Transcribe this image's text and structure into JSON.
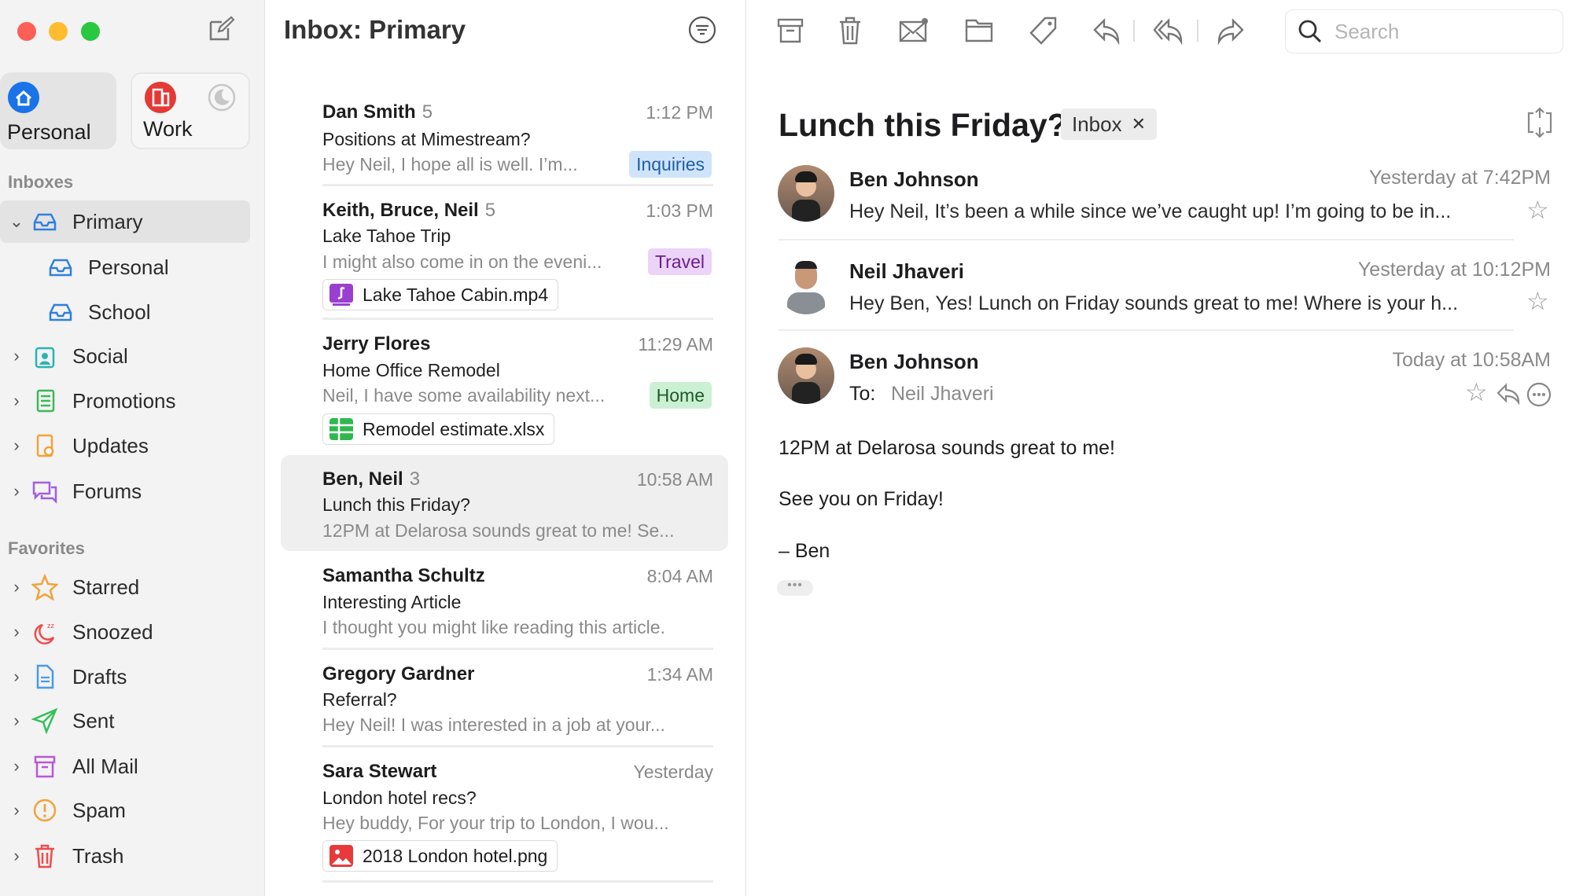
{
  "sidebar": {
    "accounts": [
      {
        "label": "Personal",
        "icon": "house-icon",
        "color": "#1a73e8"
      },
      {
        "label": "Work",
        "icon": "building-icon",
        "color": "#e53935"
      }
    ],
    "inboxes_label": "Inboxes",
    "inboxes": [
      {
        "label": "Primary",
        "icon": "inbox-tray-icon",
        "selected": true,
        "expanded": true
      },
      {
        "label": "Personal",
        "icon": "inbox-tray-icon"
      },
      {
        "label": "School",
        "icon": "inbox-tray-icon"
      },
      {
        "label": "Social",
        "icon": "social-icon"
      },
      {
        "label": "Promotions",
        "icon": "promotions-icon"
      },
      {
        "label": "Updates",
        "icon": "updates-icon"
      },
      {
        "label": "Forums",
        "icon": "forums-icon"
      }
    ],
    "favorites_label": "Favorites",
    "favorites": [
      {
        "label": "Starred",
        "icon": "star-icon"
      },
      {
        "label": "Snoozed",
        "icon": "snooze-icon"
      },
      {
        "label": "Drafts",
        "icon": "draft-icon"
      },
      {
        "label": "Sent",
        "icon": "send-icon"
      },
      {
        "label": "All Mail",
        "icon": "archive-icon"
      },
      {
        "label": "Spam",
        "icon": "spam-icon"
      },
      {
        "label": "Trash",
        "icon": "trash-icon"
      }
    ]
  },
  "list": {
    "title": "Inbox: Primary",
    "emails": [
      {
        "sender": "Dan Smith",
        "count": "5",
        "time": "1:12 PM",
        "subject": "Positions at Mimestream?",
        "preview": "Hey Neil, I hope all is well. I’m...",
        "tag": "Inquiries",
        "tag_bg": "#cfe4fb",
        "tag_fg": "#1f5fa8"
      },
      {
        "sender": "Keith, Bruce, Neil",
        "count": "5",
        "time": "1:03 PM",
        "subject": "Lake Tahoe Trip",
        "preview": "I might also come in on the eveni...",
        "tag": "Travel",
        "tag_bg": "#ecd3f8",
        "tag_fg": "#6a1f8c",
        "attachment": "Lake Tahoe Cabin.mp4"
      },
      {
        "sender": "Jerry Flores",
        "time": "11:29 AM",
        "subject": "Home Office Remodel",
        "preview": "Neil, I have some availability next...",
        "tag": "Home",
        "tag_bg": "#ccf0d4",
        "tag_fg": "#1d5a2a",
        "attachment": "Remodel estimate.xlsx"
      },
      {
        "sender": "Ben, Neil",
        "count": "3",
        "time": "10:58 AM",
        "subject": "Lunch this Friday?",
        "preview": "12PM at Delarosa sounds great to me! Se...",
        "selected": true
      },
      {
        "sender": "Samantha Schultz",
        "time": "8:04 AM",
        "subject": "Interesting Article",
        "preview": "I thought you might like reading this article."
      },
      {
        "sender": "Gregory Gardner",
        "time": "1:34 AM",
        "subject": "Referral?",
        "preview": "Hey Neil! I was interested in a job at your..."
      },
      {
        "sender": "Sara Stewart",
        "time": "Yesterday",
        "subject": "London hotel recs?",
        "preview": "Hey buddy, For your trip to London, I wou...",
        "attachment": "2018 London hotel.png"
      }
    ]
  },
  "reader": {
    "search_placeholder": "Search",
    "subject": "Lunch this Friday?",
    "label_chip": "Inbox",
    "messages": [
      {
        "name": "Ben Johnson",
        "date": "Yesterday at 7:42PM",
        "preview": "Hey Neil, It’s been a while since we’ve caught up! I’m going to be in..."
      },
      {
        "name": "Neil Jhaveri",
        "date": "Yesterday at 10:12PM",
        "preview": "Hey Ben, Yes! Lunch on Friday sounds great to me! Where is your h..."
      },
      {
        "name": "Ben Johnson",
        "date": "Today at 10:58AM",
        "to_label": "To:",
        "to": "Neil Jhaveri"
      }
    ],
    "body": [
      "12PM at Delarosa sounds great to me!",
      "See you on Friday!",
      "– Ben"
    ]
  }
}
